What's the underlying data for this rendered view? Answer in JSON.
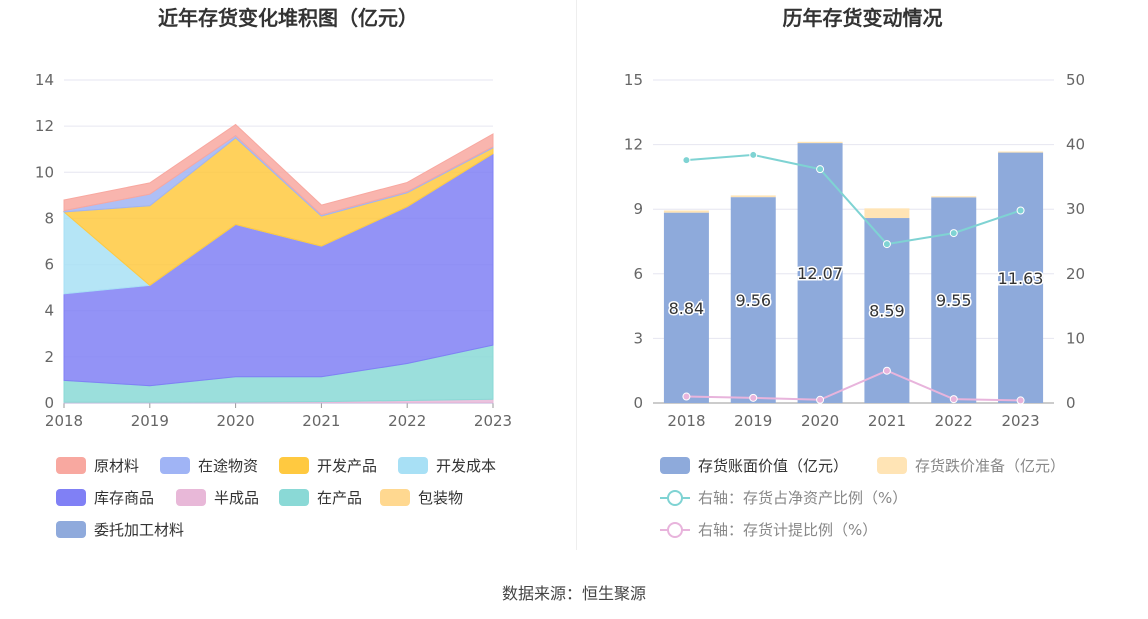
{
  "source": "数据来源：恒生聚源",
  "chart_data": [
    {
      "type": "area",
      "stacked": true,
      "title": "近年存货变化堆积图（亿元）",
      "categories": [
        "2018",
        "2019",
        "2020",
        "2021",
        "2022",
        "2023"
      ],
      "ylim": [
        0,
        14
      ],
      "yticks": [
        0,
        2,
        4,
        6,
        8,
        10,
        12,
        14
      ],
      "series": [
        {
          "name": "委托加工材料",
          "color": "#8faadc",
          "values": [
            0.01,
            0.01,
            0.01,
            0.01,
            0.01,
            0.01
          ]
        },
        {
          "name": "半成品",
          "color": "#e8b8d8",
          "values": [
            0.02,
            0.02,
            0.03,
            0.05,
            0.1,
            0.15
          ]
        },
        {
          "name": "在产品",
          "color": "#8ad9d6",
          "values": [
            0.95,
            0.72,
            1.1,
            1.08,
            1.6,
            2.35
          ]
        },
        {
          "name": "库存商品",
          "color": "#8080f5",
          "values": [
            3.75,
            4.35,
            6.6,
            5.66,
            6.8,
            8.3
          ]
        },
        {
          "name": "开发成本",
          "color": "#a8e0f5",
          "values": [
            3.55,
            0,
            0,
            0,
            0,
            0
          ]
        },
        {
          "name": "开发产品",
          "color": "#ffc940",
          "values": [
            0,
            3.45,
            3.75,
            1.3,
            0.6,
            0.25
          ]
        },
        {
          "name": "在途物资",
          "color": "#a0b4f5",
          "values": [
            0.06,
            0.5,
            0.1,
            0.06,
            0.05,
            0.05
          ]
        },
        {
          "name": "原材料",
          "color": "#f8a8a0",
          "values": [
            0.46,
            0.49,
            0.48,
            0.42,
            0.4,
            0.55
          ]
        },
        {
          "name": "包装物",
          "color": "#ffd890",
          "values": [
            0,
            0,
            0,
            0,
            0,
            0
          ]
        }
      ],
      "legend": [
        "原材料",
        "在途物资",
        "开发产品",
        "开发成本",
        "库存商品",
        "半成品",
        "在产品",
        "包装物",
        "委托加工材料"
      ]
    },
    {
      "type": "bar",
      "stacked": true,
      "title": "历年存货变动情况",
      "categories": [
        "2018",
        "2019",
        "2020",
        "2021",
        "2022",
        "2023"
      ],
      "ylim": [
        0,
        15
      ],
      "yticks": [
        0,
        3,
        6,
        9,
        12,
        15
      ],
      "y2lim": [
        0,
        50
      ],
      "y2ticks": [
        0,
        10,
        20,
        30,
        40,
        50
      ],
      "series": [
        {
          "name": "存货账面价值（亿元）",
          "color": "#8eaadb",
          "values": [
            8.84,
            9.56,
            12.07,
            8.59,
            9.55,
            11.63
          ],
          "labels": [
            "8.84",
            "9.56",
            "12.07",
            "8.59",
            "9.55",
            "11.63"
          ]
        },
        {
          "name": "存货跌价准备（亿元）",
          "color": "#ffe4b5",
          "values": [
            0.1,
            0.08,
            0.06,
            0.45,
            0.05,
            0.05
          ]
        }
      ],
      "line_series": [
        {
          "name": "右轴：存货占净资产比例（%）",
          "color": "#7fd3d3",
          "values": [
            37.6,
            38.4,
            36.2,
            24.6,
            26.3,
            29.8
          ]
        },
        {
          "name": "右轴：存货计提比例（%）",
          "color": "#e8b4dc",
          "values": [
            1.0,
            0.8,
            0.5,
            5.0,
            0.6,
            0.4
          ]
        }
      ]
    }
  ]
}
